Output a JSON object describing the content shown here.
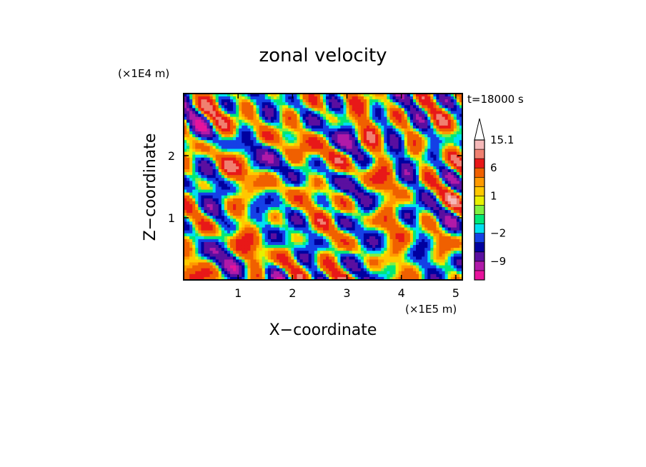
{
  "chart_data": {
    "type": "heatmap",
    "title": "zonal velocity",
    "xlabel": "X−coordinate",
    "ylabel": "Z−coordinate",
    "x_unit_label": "(×1E5 m)",
    "y_unit_label": "(×1E4 m)",
    "time_label": "t=18000 s",
    "xlim": [
      0,
      5.12
    ],
    "ylim": [
      0,
      3.0
    ],
    "x_ticks": [
      {
        "value": 1,
        "label": "1"
      },
      {
        "value": 2,
        "label": "2"
      },
      {
        "value": 3,
        "label": "3"
      },
      {
        "value": 4,
        "label": "4"
      },
      {
        "value": 5,
        "label": "5"
      }
    ],
    "y_ticks": [
      {
        "value": 1,
        "label": "1"
      },
      {
        "value": 2,
        "label": "2"
      }
    ],
    "colorbar": {
      "bins": [
        {
          "upper": -12,
          "color": "#e8139c"
        },
        {
          "upper": -9,
          "color": "#b01aa8"
        },
        {
          "upper": -6,
          "color": "#5a0fa0"
        },
        {
          "upper": -4,
          "color": "#0000a0"
        },
        {
          "upper": -2,
          "color": "#1540e6"
        },
        {
          "upper": -1,
          "color": "#00e0f0"
        },
        {
          "upper": 0,
          "color": "#00e878"
        },
        {
          "upper": 0.5,
          "color": "#80f040"
        },
        {
          "upper": 1,
          "color": "#e8f000"
        },
        {
          "upper": 2,
          "color": "#ffc800"
        },
        {
          "upper": 3,
          "color": "#ff9900"
        },
        {
          "upper": 6,
          "color": "#f06000"
        },
        {
          "upper": 9,
          "color": "#e81818"
        },
        {
          "upper": 12,
          "color": "#f08070"
        },
        {
          "upper": 15.1,
          "color": "#f5b8b8"
        },
        {
          "upper": 99,
          "color": "#ffffff"
        }
      ],
      "labels": [
        {
          "value": 15.1,
          "label": "15.1"
        },
        {
          "value": 6,
          "label": "6"
        },
        {
          "value": 1,
          "label": "1"
        },
        {
          "value": -2,
          "label": "−2"
        },
        {
          "value": -9,
          "label": "−9"
        }
      ]
    }
  }
}
